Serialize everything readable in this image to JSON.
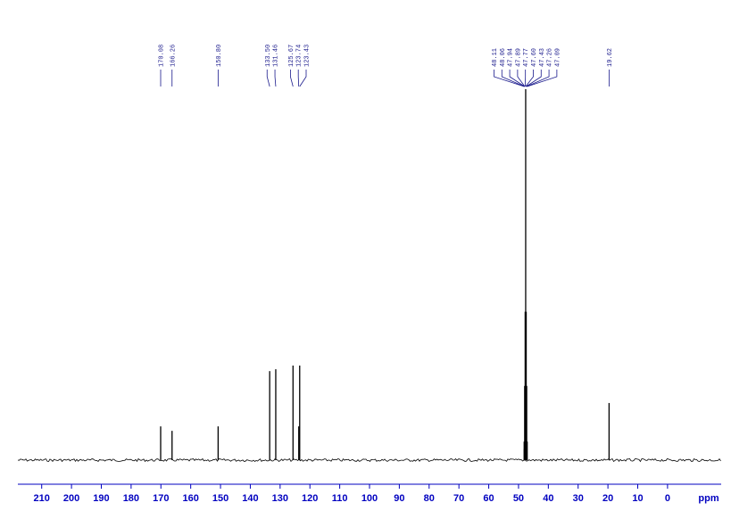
{
  "chart_data": {
    "type": "nmr",
    "x_label": "ppm",
    "x": [
      170.08,
      166.26,
      150.8,
      133.5,
      131.46,
      125.67,
      123.74,
      123.43,
      48.11,
      48.06,
      47.94,
      47.89,
      47.77,
      47.6,
      47.43,
      47.26,
      47.09,
      19.62
    ],
    "x_labels": [
      "170.08",
      "166.26",
      "150.80",
      "133.50",
      "131.46",
      "125.67",
      "123.74",
      "123.43",
      "48.11",
      "48.06",
      "47.94",
      "47.89",
      "47.77",
      "47.60",
      "47.43",
      "47.26",
      "47.09",
      "19.62"
    ],
    "values": [
      9.1,
      7.9,
      9.1,
      24,
      24.5,
      25.5,
      9.1,
      25.5,
      5,
      3,
      20,
      3,
      40,
      100,
      40,
      20,
      5,
      15.4
    ],
    "color": "#000000",
    "label_color": "#1a1a8c",
    "axis_color": "#0000c0",
    "xlim": [
      218,
      -18
    ],
    "ylim": [
      0,
      100
    ],
    "xticks": [
      210,
      200,
      190,
      180,
      170,
      160,
      150,
      140,
      130,
      120,
      110,
      100,
      90,
      80,
      70,
      60,
      50,
      40,
      30,
      20,
      10,
      0
    ]
  }
}
